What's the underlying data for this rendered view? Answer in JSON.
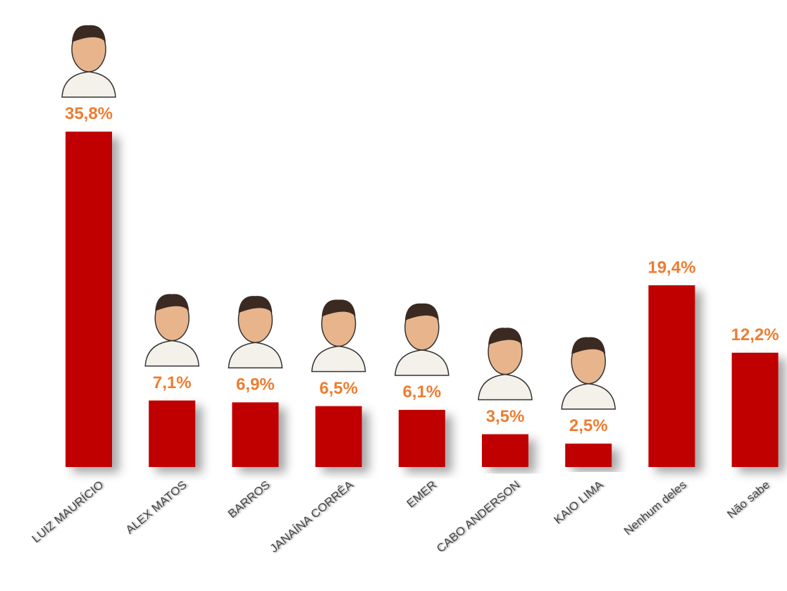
{
  "chart_data": {
    "type": "bar",
    "categories": [
      "LUIZ MAURÍCIO",
      "ALEX MATOS",
      "BARROS",
      "JANAÍNA CORRÊA",
      "EMER",
      "CABO ANDERSON",
      "KAIO LIMA",
      "Nenhum deles",
      "Não sabe"
    ],
    "values": [
      35.8,
      7.1,
      6.9,
      6.5,
      6.1,
      3.5,
      2.5,
      19.4,
      12.2
    ],
    "value_labels": [
      "35,8%",
      "7,1%",
      "6,9%",
      "6,5%",
      "6,1%",
      "3,5%",
      "2,5%",
      "19,4%",
      "12,2%"
    ],
    "color": "#c00000",
    "label_color": "#ed7d31"
  }
}
